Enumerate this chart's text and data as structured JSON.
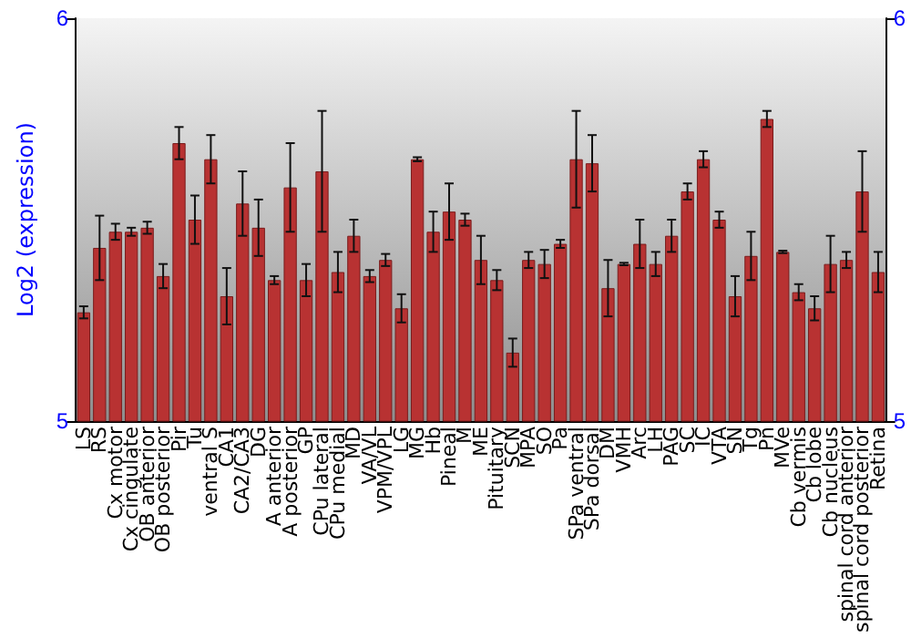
{
  "chart_data": {
    "type": "bar",
    "ylabel": "Log2 (expression)",
    "categories": [
      "LS",
      "RS",
      "Cx motor",
      "Cx cingulate",
      "OB anterior",
      "OB posterior",
      "Pir",
      "Tu",
      "ventral S",
      "CA1",
      "CA2/CA3",
      "DG",
      "A anterior",
      "A posterior",
      "GP",
      "CPu lateral",
      "CPu medial",
      "MD",
      "VA/VL",
      "VPM/VPL",
      "LG",
      "MG",
      "Hb",
      "Pineal",
      "M",
      "ME",
      "Pituitary",
      "SCN",
      "MPA",
      "SO",
      "Pa",
      "SPa ventral",
      "SPa dorsal",
      "DM",
      "VMH",
      "Arc",
      "LH",
      "PAG",
      "SC",
      "IC",
      "VTA",
      "SN",
      "Tg",
      "Pn",
      "MVe",
      "Cb vermis",
      "Cb lobe",
      "Cb nucleus",
      "spinal cord anterior",
      "spinal cord posterior",
      "Retina"
    ],
    "values": [
      5.27,
      5.43,
      5.47,
      5.47,
      5.48,
      5.36,
      5.69,
      5.5,
      5.65,
      5.31,
      5.54,
      5.48,
      5.35,
      5.58,
      5.35,
      5.62,
      5.37,
      5.46,
      5.36,
      5.4,
      5.28,
      5.65,
      5.47,
      5.52,
      5.5,
      5.4,
      5.35,
      5.17,
      5.4,
      5.39,
      5.44,
      5.65,
      5.64,
      5.33,
      5.39,
      5.44,
      5.39,
      5.46,
      5.57,
      5.65,
      5.5,
      5.31,
      5.41,
      5.75,
      5.42,
      5.32,
      5.28,
      5.39,
      5.4,
      5.57,
      5.37
    ],
    "errors": [
      0.015,
      0.08,
      0.02,
      0.01,
      0.015,
      0.03,
      0.04,
      0.06,
      0.06,
      0.07,
      0.08,
      0.07,
      0.01,
      0.11,
      0.04,
      0.15,
      0.05,
      0.04,
      0.015,
      0.015,
      0.035,
      0.005,
      0.05,
      0.07,
      0.015,
      0.06,
      0.025,
      0.035,
      0.02,
      0.035,
      0.01,
      0.12,
      0.07,
      0.07,
      0.003,
      0.06,
      0.03,
      0.04,
      0.02,
      0.02,
      0.02,
      0.05,
      0.06,
      0.02,
      0.003,
      0.02,
      0.03,
      0.07,
      0.02,
      0.1,
      0.05
    ],
    "color": "#b83232",
    "ylim": [
      5,
      6
    ],
    "yticks": [
      5,
      6
    ],
    "y2lim": [
      5,
      6
    ],
    "y2ticks": [
      5,
      6
    ],
    "grid": false
  }
}
